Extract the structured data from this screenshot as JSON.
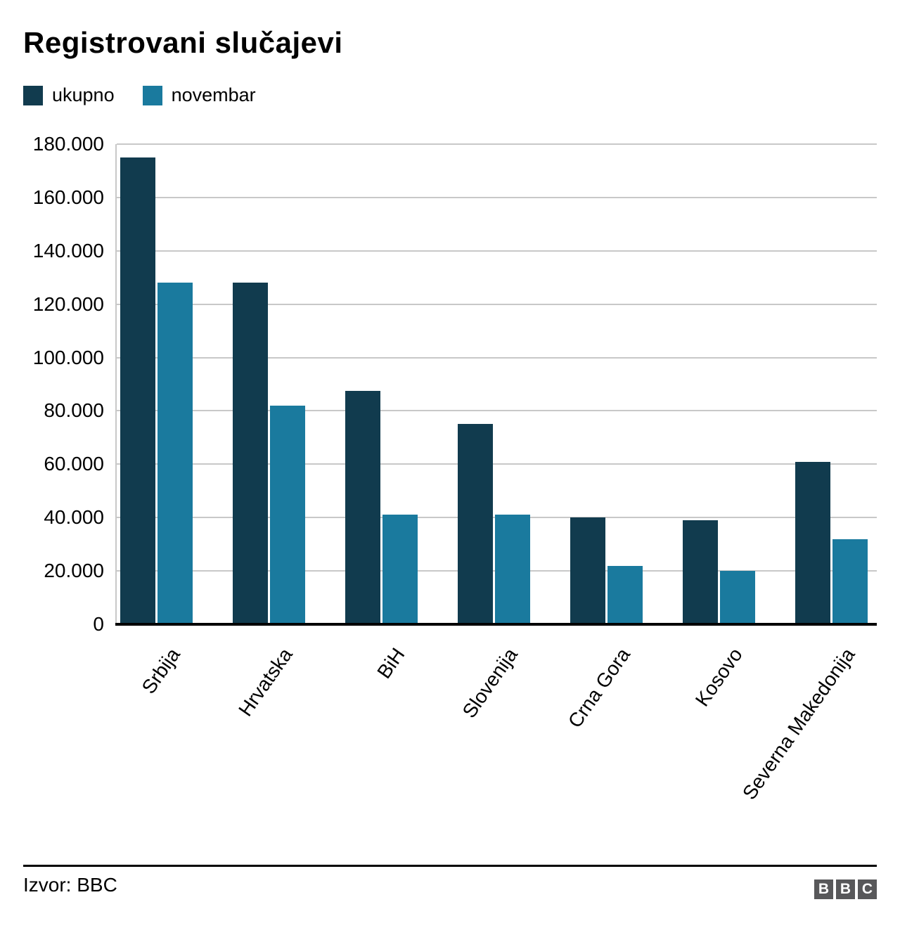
{
  "title": "Registrovani slučajevi",
  "colors": {
    "ukupno": "#113B4E",
    "novembar": "#1A7A9E",
    "gridline": "#C8C8C8",
    "axis": "#000000",
    "logo_gray": "#58585A"
  },
  "chart_data": {
    "type": "bar",
    "title": "Registrovani slučajevi",
    "categories": [
      "Srbija",
      "Hrvatska",
      "BiH",
      "Slovenija",
      "Crna Gora",
      "Kosovo",
      "Severna Makedonija"
    ],
    "series": [
      {
        "name": "ukupno",
        "color": "#113B4E",
        "values": [
          175000,
          128000,
          87500,
          75000,
          40000,
          39000,
          61000
        ]
      },
      {
        "name": "novembar",
        "color": "#1A7A9E",
        "values": [
          128000,
          82000,
          41000,
          41000,
          22000,
          20000,
          32000
        ]
      }
    ],
    "xlabel": "",
    "ylabel": "",
    "ylim": [
      0,
      180000
    ],
    "ytick_step": 20000,
    "ytick_labels": [
      "0",
      "20.000",
      "40.000",
      "60.000",
      "80.000",
      "100.000",
      "120.000",
      "140.000",
      "160.000",
      "180.000"
    ],
    "grid": true,
    "legend_position": "top-left"
  },
  "footer": {
    "source": "Izvor: BBC",
    "logo_letters": [
      "B",
      "B",
      "C"
    ]
  }
}
